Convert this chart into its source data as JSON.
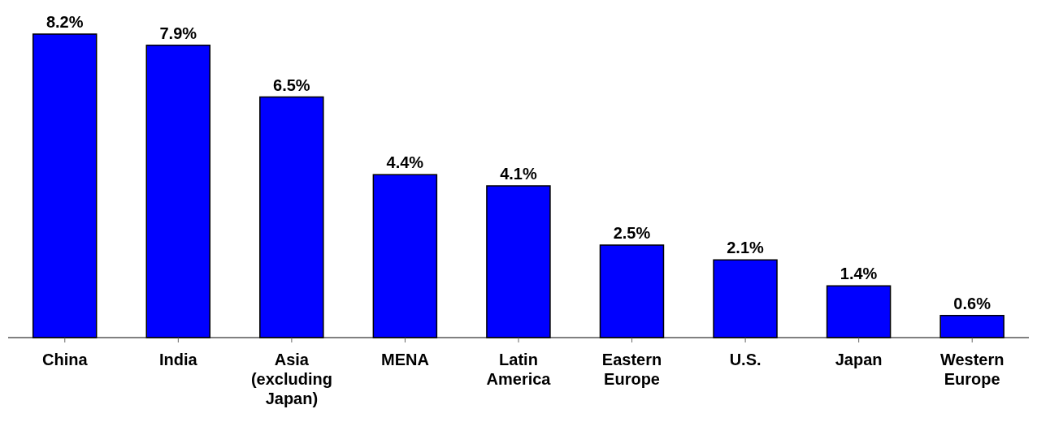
{
  "chart_data": {
    "type": "bar",
    "categories": [
      "China",
      "India",
      "Asia (excluding Japan)",
      "MENA",
      "Latin America",
      "Eastern Europe",
      "U.S.",
      "Japan",
      "Western Europe"
    ],
    "values": [
      8.2,
      7.9,
      6.5,
      4.4,
      4.1,
      2.5,
      2.1,
      1.4,
      0.6
    ],
    "value_labels": [
      "8.2%",
      "7.9%",
      "6.5%",
      "4.4%",
      "4.1%",
      "2.5%",
      "2.1%",
      "1.4%",
      "0.6%"
    ],
    "color": "#0000ff",
    "grid": false,
    "legend": false
  }
}
